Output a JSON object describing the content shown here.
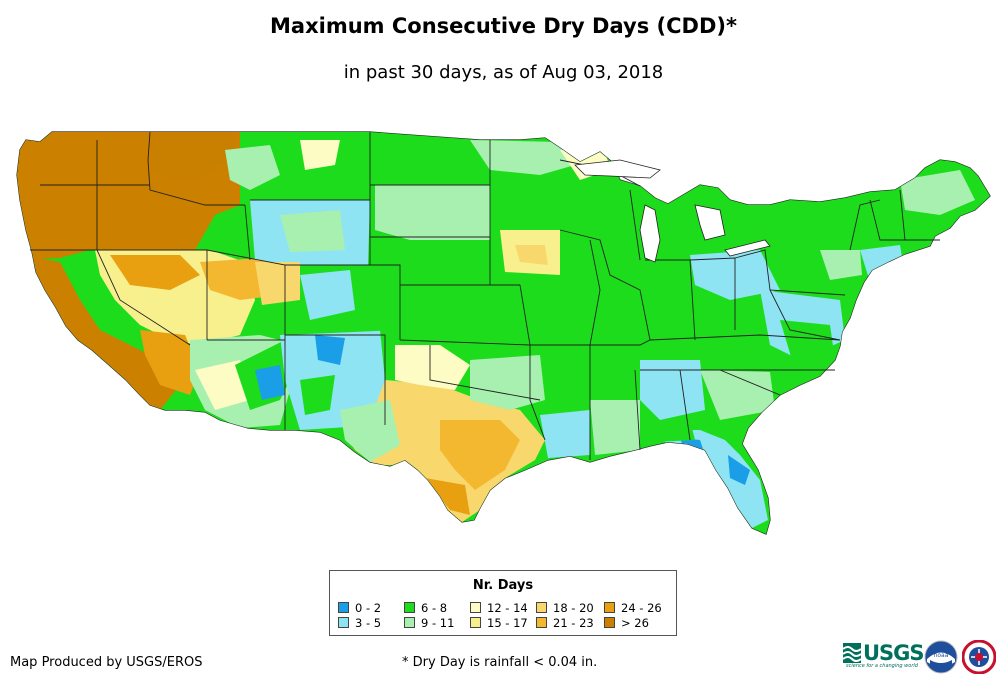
{
  "title": "Maximum Consecutive Dry Days (CDD)*",
  "subtitle": "in past 30 days, as of Aug 03, 2018",
  "legend": {
    "title": "Nr. Days",
    "items": [
      {
        "label": "0 - 2",
        "color": "#1a9ee8"
      },
      {
        "label": "3 - 5",
        "color": "#8ee4f2"
      },
      {
        "label": "6 - 8",
        "color": "#1cdc1c"
      },
      {
        "label": "9 - 11",
        "color": "#a8f0b0"
      },
      {
        "label": "12 - 14",
        "color": "#fcfcc4"
      },
      {
        "label": "15 - 17",
        "color": "#f8f08c"
      },
      {
        "label": "18 - 20",
        "color": "#f8d86c"
      },
      {
        "label": "21 - 23",
        "color": "#f4b830"
      },
      {
        "label": "24 - 26",
        "color": "#e8a010"
      },
      {
        "label": "> 26",
        "color": "#cc8000"
      }
    ]
  },
  "credit": "Map Produced by USGS/EROS",
  "footnote": "* Dry Day is rainfall < 0.04 in.",
  "logos": {
    "usgs_text": "USGS",
    "usgs_tagline": "science for a changing world",
    "noaa_text": "noaa"
  }
}
